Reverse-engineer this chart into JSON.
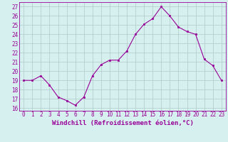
{
  "x": [
    0,
    1,
    2,
    3,
    4,
    5,
    6,
    7,
    8,
    9,
    10,
    11,
    12,
    13,
    14,
    15,
    16,
    17,
    18,
    19,
    20,
    21,
    22,
    23
  ],
  "y": [
    19,
    19,
    19.5,
    18.5,
    17.2,
    16.8,
    16.3,
    17.2,
    19.5,
    20.7,
    21.2,
    21.2,
    22.2,
    24.0,
    25.1,
    25.7,
    27.0,
    26.0,
    24.8,
    24.3,
    24.0,
    21.3,
    20.6,
    19.0
  ],
  "line_color": "#990099",
  "marker": "s",
  "markersize": 1.8,
  "linewidth": 0.8,
  "xlabel": "Windchill (Refroidissement éolien,°C)",
  "xlabel_fontsize": 6.5,
  "ylabel_ticks": [
    16,
    17,
    18,
    19,
    20,
    21,
    22,
    23,
    24,
    25,
    26,
    27
  ],
  "xtick_labels": [
    "0",
    "1",
    "2",
    "3",
    "4",
    "5",
    "6",
    "7",
    "8",
    "9",
    "10",
    "11",
    "12",
    "13",
    "14",
    "15",
    "16",
    "17",
    "18",
    "19",
    "20",
    "21",
    "22",
    "23"
  ],
  "ylim": [
    15.7,
    27.5
  ],
  "xlim": [
    -0.5,
    23.5
  ],
  "bg_color": "#d6f0f0",
  "grid_color": "#b0c8c8",
  "tick_color": "#990099",
  "tick_fontsize": 5.5
}
